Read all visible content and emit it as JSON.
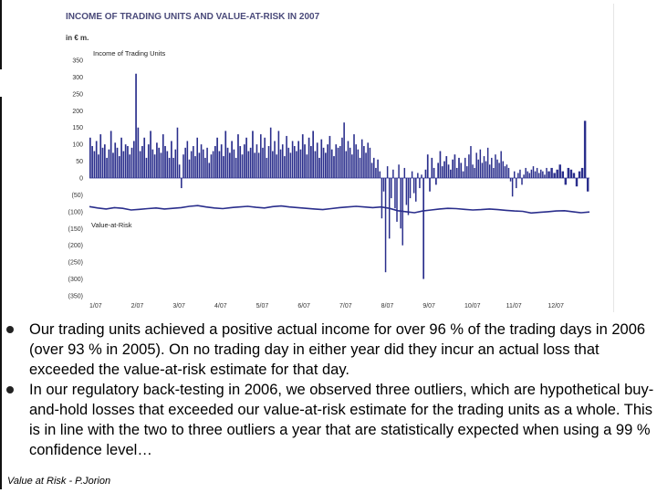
{
  "chart_data": {
    "type": "bar",
    "title": "INCOME OF TRADING UNITS AND VALUE-AT-RISK IN 2007",
    "unit": "in € m.",
    "series": [
      {
        "name": "Income of Trading Units",
        "kind": "bar"
      },
      {
        "name": "Value-at-Risk",
        "kind": "line"
      }
    ],
    "ylim": [
      -350,
      350
    ],
    "yticks": [
      "350",
      "300",
      "250",
      "200",
      "150",
      "100",
      "50",
      "0",
      "(50)",
      "(100)",
      "(150)",
      "(200)",
      "(250)",
      "(300)",
      "(350)"
    ],
    "ytick_values": [
      350,
      300,
      250,
      200,
      150,
      100,
      50,
      0,
      -50,
      -100,
      -150,
      -200,
      -250,
      -300,
      -350
    ],
    "xticks": [
      "1/07",
      "2/07",
      "3/07",
      "4/07",
      "5/07",
      "6/07",
      "7/07",
      "8/07",
      "9/07",
      "10/07",
      "11/07",
      "12/07"
    ],
    "income_segments": [
      {
        "month": "1/07",
        "values": [
          120,
          95,
          80,
          110,
          70,
          130,
          90,
          100,
          60,
          85,
          140,
          75,
          105,
          90,
          65,
          120,
          80,
          100,
          95,
          70
        ]
      },
      {
        "month": "2/07",
        "values": [
          90,
          110,
          310,
          150,
          80,
          95,
          120,
          60,
          100,
          140,
          85,
          70,
          105,
          90,
          75,
          130,
          95,
          80,
          60,
          110
        ]
      },
      {
        "month": "3/07",
        "values": [
          60,
          85,
          150,
          40,
          -30,
          70,
          90,
          110,
          55,
          80,
          95,
          65,
          120,
          75,
          100,
          85,
          60,
          90,
          45,
          70,
          80
        ]
      },
      {
        "month": "4/07",
        "values": [
          95,
          120,
          80,
          100,
          65,
          140,
          90,
          75,
          110,
          85,
          60,
          130,
          95,
          70,
          100,
          120,
          80,
          90,
          140,
          75
        ]
      },
      {
        "month": "5/07",
        "values": [
          100,
          75,
          130,
          90,
          120,
          60,
          95,
          150,
          80,
          110,
          70,
          140,
          85,
          100,
          65,
          125,
          90,
          75,
          110,
          95,
          80
        ]
      },
      {
        "month": "6/07",
        "values": [
          110,
          85,
          130,
          100,
          70,
          120,
          95,
          140,
          80,
          105,
          60,
          115,
          90,
          75,
          100,
          125,
          85,
          65,
          100,
          90
        ]
      },
      {
        "month": "7/07",
        "values": [
          95,
          120,
          165,
          80,
          110,
          90,
          70,
          130,
          100,
          85,
          60,
          115,
          95,
          75,
          105,
          90,
          45,
          60,
          30,
          55,
          20
        ]
      },
      {
        "month": "8/07",
        "values": [
          -120,
          -40,
          -280,
          35,
          -180,
          -60,
          25,
          -90,
          -130,
          40,
          -150,
          -200,
          30,
          -80,
          -110,
          -60,
          20,
          -45,
          -70,
          15,
          -30,
          10
        ]
      },
      {
        "month": "9/07",
        "values": [
          -300,
          25,
          70,
          -40,
          60,
          30,
          -20,
          45,
          80,
          35,
          50,
          65,
          40,
          25,
          55,
          70,
          30,
          60,
          45,
          20
        ]
      },
      {
        "month": "10/07",
        "values": [
          60,
          35,
          70,
          95,
          40,
          30,
          75,
          55,
          85,
          45,
          65,
          50,
          90,
          40,
          60,
          30,
          70,
          55,
          45,
          80,
          50,
          35
        ]
      },
      {
        "month": "11/07",
        "values": [
          40,
          30,
          -10,
          -55,
          20,
          -30,
          15,
          25,
          -20,
          10,
          30,
          20,
          15,
          25,
          35,
          20,
          30,
          15,
          25,
          20,
          10,
          30
        ]
      },
      {
        "month": "12/07",
        "values": [
          20,
          30,
          15,
          25,
          40,
          20,
          -20,
          30,
          25,
          15,
          -25,
          20,
          30,
          170,
          -40
        ]
      }
    ],
    "var_values": [
      -85,
      -89,
      -92,
      -88,
      -90,
      -95,
      -93,
      -91,
      -89,
      -92,
      -90,
      -88,
      -84,
      -82,
      -86,
      -89,
      -91,
      -88,
      -86,
      -84,
      -87,
      -89,
      -85,
      -83,
      -86,
      -88,
      -90,
      -92,
      -94,
      -91,
      -88,
      -86,
      -84,
      -86,
      -88,
      -86,
      -90,
      -97,
      -100,
      -103,
      -98,
      -95,
      -92,
      -90,
      -91,
      -93,
      -95,
      -94,
      -92,
      -94,
      -96,
      -98,
      -99,
      -104,
      -102,
      -100,
      -98,
      -97,
      -100,
      -103,
      -101
    ]
  },
  "bullets": [
    "Our trading units achieved a positive actual income for over 96 % of the trading days in 2006 (over 93 % in 2005). On no trading day in either year did they incur an actual loss that exceeded the value-at-risk estimate for that day.",
    "In our regulatory back-testing in 2006, we observed three outliers, which are hypothetical buy-and-hold losses that exceeded our value-at-risk estimate for the trading units as a whole. This is in line with the two to three outliers a year that are statistically expected when using a 99 % confidence level…"
  ],
  "footer": "Value at Risk - P.Jorion",
  "colors": {
    "bar": "#2a2e8c",
    "var_line": "#2a2e8c",
    "title": "#4a4a7a",
    "axis": "#333333"
  }
}
